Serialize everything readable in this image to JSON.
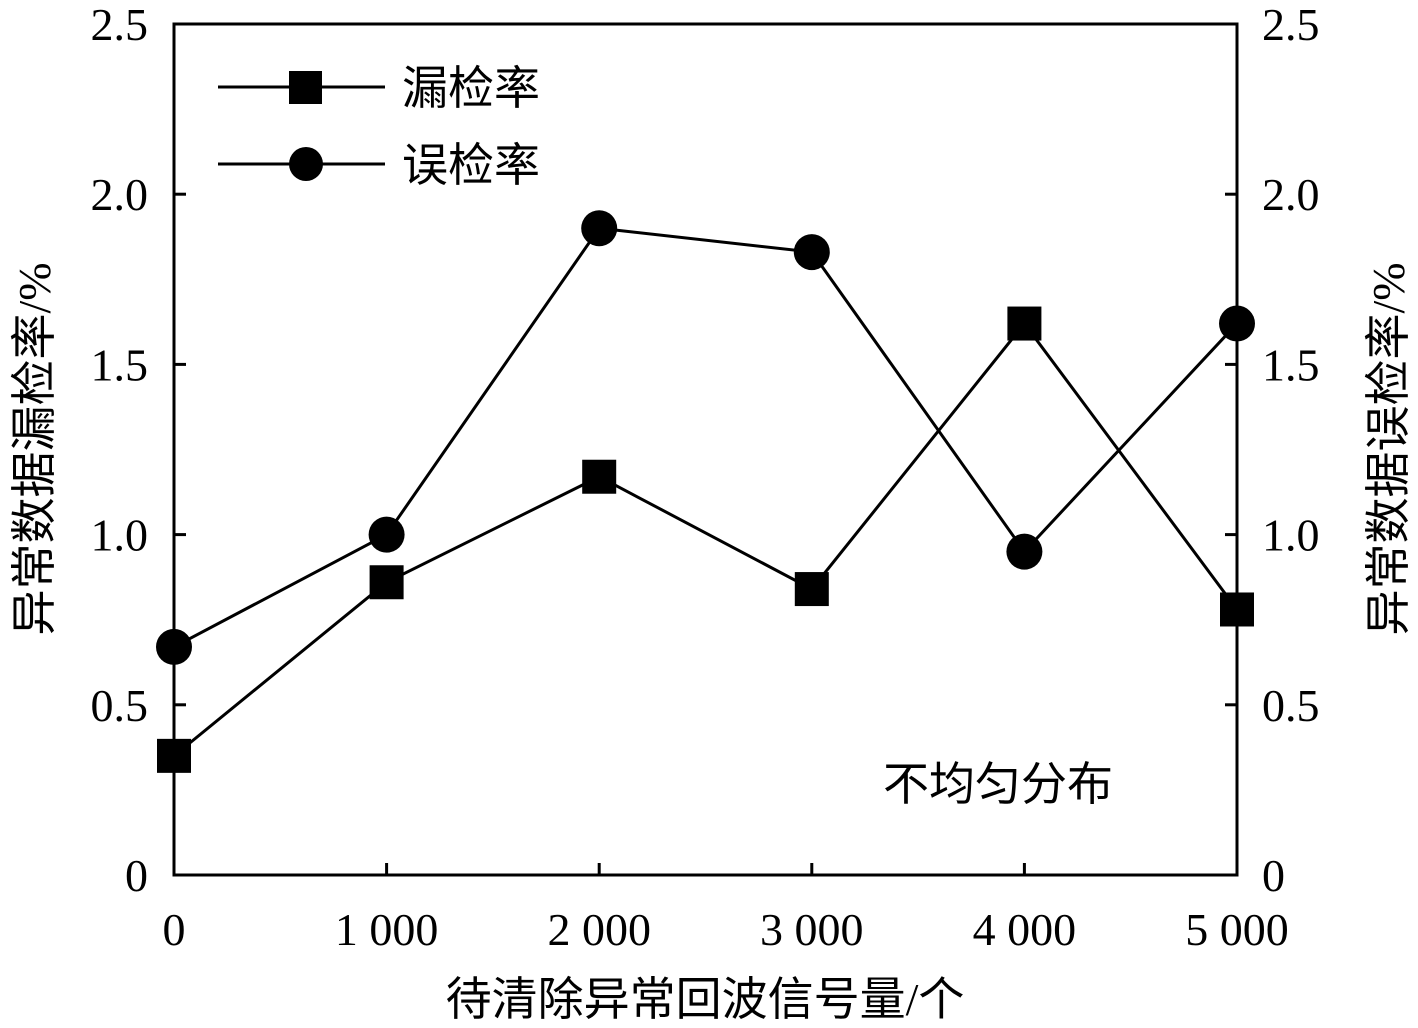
{
  "chart_data": {
    "type": "line",
    "x": [
      0,
      1000,
      2000,
      3000,
      4000,
      5000
    ],
    "x_tick_labels": [
      "0",
      "1 000",
      "2 000",
      "3 000",
      "4 000",
      "5 000"
    ],
    "xlim": [
      0,
      5000
    ],
    "xlabel": "待清除异常回波信号量/个",
    "ylabel_left": "异常数据漏检率/%",
    "ylabel_right": "异常数据误检率/%",
    "ylim": [
      0,
      2.5
    ],
    "y_ticks": [
      0,
      0.5,
      1.0,
      1.5,
      2.0,
      2.5
    ],
    "y_tick_labels": [
      "0",
      "0.5",
      "1.0",
      "1.5",
      "2.0",
      "2.5"
    ],
    "series": [
      {
        "name": "漏检率",
        "marker": "square",
        "axis": "left",
        "values": [
          0.35,
          0.86,
          1.17,
          0.84,
          1.62,
          0.78
        ]
      },
      {
        "name": "误检率",
        "marker": "circle",
        "axis": "right",
        "values": [
          0.67,
          1.0,
          1.9,
          1.83,
          0.95,
          1.62
        ]
      }
    ],
    "annotation": "不均匀分布",
    "legend_position": "top-left",
    "grid": false,
    "color": "#000000"
  }
}
